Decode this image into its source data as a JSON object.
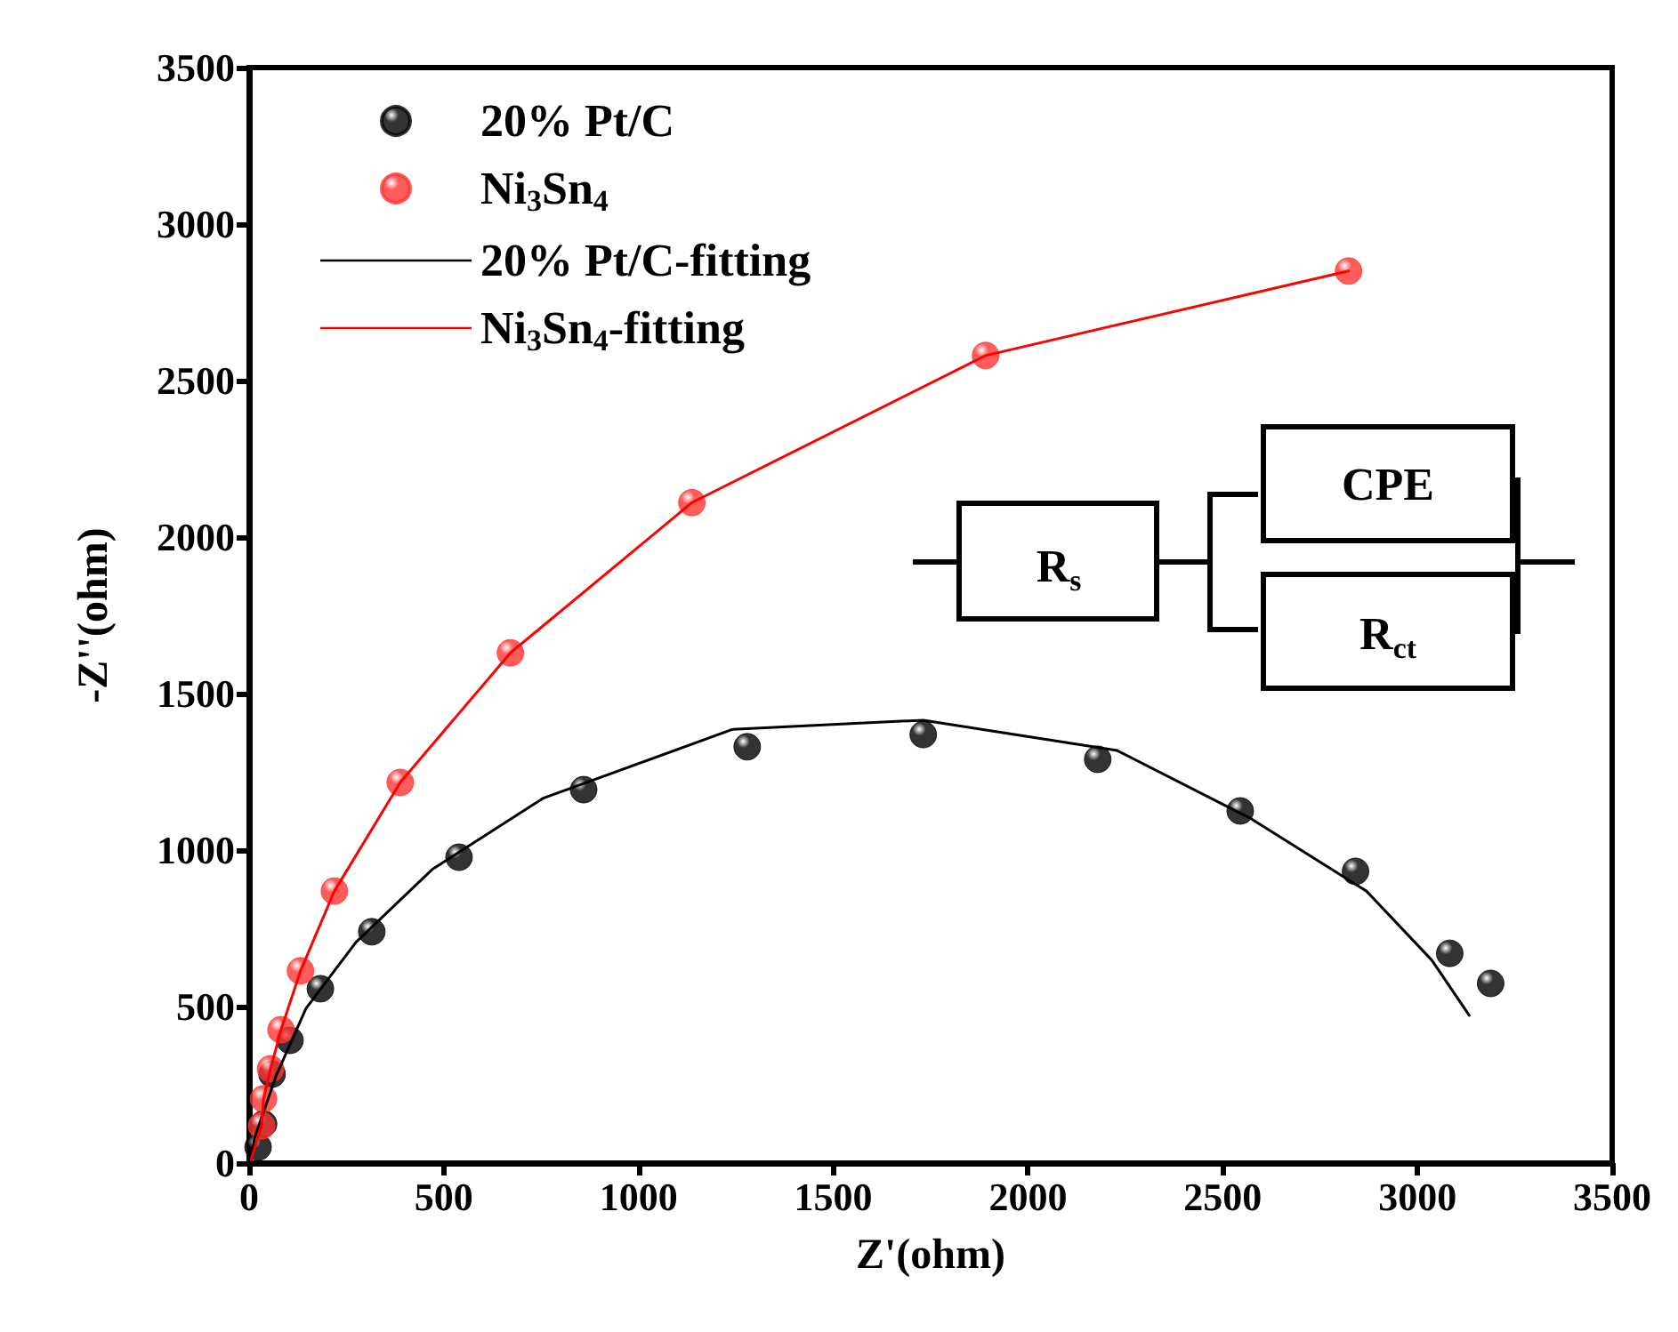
{
  "chart_data": {
    "type": "scatter",
    "xlabel": "Z'(ohm)",
    "ylabel": "-Z''(ohm)",
    "xlim": [
      0,
      3500
    ],
    "ylim": [
      0,
      3500
    ],
    "xticks": [
      0,
      500,
      1000,
      1500,
      2000,
      2500,
      3000,
      3500
    ],
    "yticks": [
      0,
      500,
      1000,
      1500,
      2000,
      2500,
      3000,
      3500
    ],
    "grid": false,
    "legend": "top left",
    "annotations": [
      "R$_{s}$",
      "CPE",
      "R$_{ct}$"
    ],
    "series": [
      {
        "name": "20% Pt/C",
        "marker": "circle",
        "color": "#000000",
        "x": [
          23,
          37,
          59,
          105,
          183,
          315,
          539,
          859,
          1279,
          1731,
          2179,
          2545,
          2841,
          3083,
          3188
        ],
        "values": [
          51,
          125,
          284,
          392,
          557,
          739,
          977,
          1193,
          1330,
          1369,
          1290,
          1125,
          932,
          670,
          574
        ]
      },
      {
        "name": "Ni$_{3}$Sn$_{4}$",
        "marker": "circle",
        "color": "#ff3333",
        "x": [
          32,
          37,
          55,
          82,
          132,
          219,
          388,
          671,
          1137,
          1891,
          2823
        ],
        "values": [
          119,
          205,
          301,
          426,
          614,
          869,
          1216,
          1630,
          2110,
          2580,
          2850
        ]
      },
      {
        "name": "20% Pt/C-fitting",
        "type": "line",
        "marker": "none",
        "color": "#000000",
        "x": [
          5,
          14,
          69,
          146,
          274,
          470,
          754,
          1242,
          1731,
          2229,
          2570,
          2869,
          3037,
          3133
        ],
        "values": [
          10,
          80,
          278,
          494,
          705,
          938,
          1165,
          1386,
          1415,
          1318,
          1102,
          869,
          648,
          472
        ]
      },
      {
        "name": "Ni$_{3}$Sn$_{4}$-fitting",
        "type": "line",
        "marker": "none",
        "color": "#ff0000",
        "x": [
          5,
          32,
          37,
          55,
          82,
          132,
          219,
          388,
          671,
          1137,
          1891,
          2823
        ],
        "values": [
          10,
          119,
          205,
          301,
          426,
          614,
          869,
          1216,
          1630,
          2110,
          2580,
          2850
        ]
      }
    ]
  }
}
